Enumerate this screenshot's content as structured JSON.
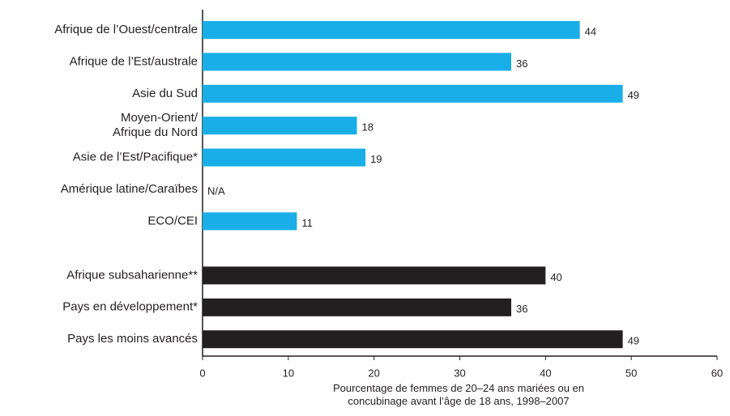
{
  "chart_data": {
    "type": "barh",
    "categories": [
      "Afrique de l’Ouest/centrale",
      "Afrique de l’Est/australe",
      "Asie du Sud",
      "Moyen-Orient/\nAfrique du Nord",
      "Asie de l’Est/Pacifique*",
      "Amérique latine/Caraïbes",
      "ECO/CEI",
      "Afrique subsaharienne**",
      "Pays en développement*",
      "Pays les moins avancés"
    ],
    "values": [
      44,
      36,
      49,
      18,
      19,
      null,
      11,
      40,
      36,
      49
    ],
    "value_labels": [
      "44",
      "36",
      "49",
      "18",
      "19",
      "N/A",
      "11",
      "40",
      "36",
      "49"
    ],
    "colors": [
      "#1aaee8",
      "#1aaee8",
      "#1aaee8",
      "#1aaee8",
      "#1aaee8",
      "#1aaee8",
      "#1aaee8",
      "#231f20",
      "#231f20",
      "#231f20"
    ],
    "xlim": [
      0,
      60
    ],
    "xticks": [
      0,
      10,
      20,
      30,
      40,
      50,
      60
    ],
    "xlabel": "Pourcentage de femmes de 20–24 ans mariées ou en\nconcubinage avant l’âge de 18 ans, 1998–2007"
  }
}
